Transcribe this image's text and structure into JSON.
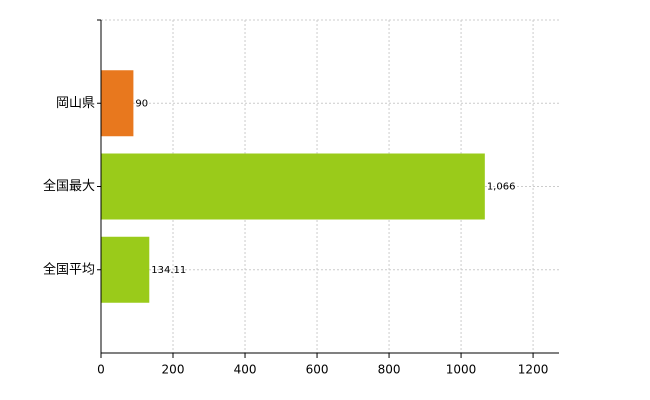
{
  "chart_data": {
    "type": "bar",
    "orientation": "horizontal",
    "categories": [
      "岡山県",
      "全国最大",
      "全国平均"
    ],
    "values": [
      90,
      1066,
      134.11
    ],
    "value_labels": [
      "90",
      "1,066",
      "134.11"
    ],
    "colors": [
      "#e8781e",
      "#9acb1a",
      "#9acb1a"
    ],
    "xlim": [
      0,
      1272
    ],
    "xticks": [
      0,
      200,
      400,
      600,
      800,
      1000,
      1200
    ],
    "grid": true
  }
}
